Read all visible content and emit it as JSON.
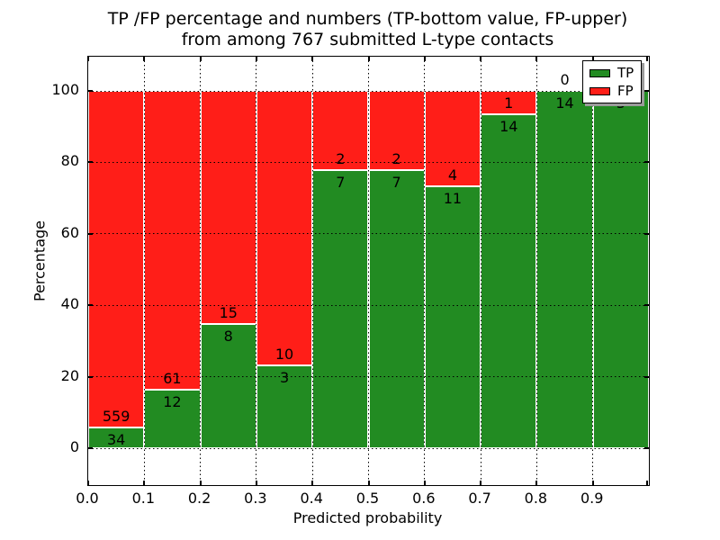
{
  "chart_data": {
    "type": "bar",
    "stacked": true,
    "percent_normalized": true,
    "title_lines": [
      "TP /FP percentage and numbers (TP-bottom value, FP-upper)",
      "from among 767 submitted L-type contacts"
    ],
    "xlabel": "Predicted probability",
    "ylabel": "Percentage",
    "total_submitted": 767,
    "bin_width": 0.1,
    "bin_starts": [
      0.0,
      0.1,
      0.2,
      0.3,
      0.4,
      0.5,
      0.6,
      0.7,
      0.8,
      0.9
    ],
    "x_tick_labels": [
      "0.0",
      "0.1",
      "0.2",
      "0.3",
      "0.4",
      "0.5",
      "0.6",
      "0.7",
      "0.8",
      "0.9"
    ],
    "y_tick_labels": [
      "0",
      "20",
      "40",
      "60",
      "80",
      "100"
    ],
    "y_tick_values": [
      0,
      20,
      40,
      60,
      80,
      100
    ],
    "xlim": [
      0.0,
      1.0
    ],
    "ylim_display": [
      -10.3,
      110.1
    ],
    "grid": "dotted",
    "series": [
      {
        "name": "TP",
        "color": "#228b22",
        "counts": [
          34,
          12,
          8,
          3,
          7,
          7,
          11,
          14,
          14,
          3
        ],
        "percent_of_bin": [
          5.7,
          16.4,
          34.8,
          23.1,
          77.8,
          77.8,
          73.3,
          93.3,
          100.0,
          100.0
        ]
      },
      {
        "name": "FP",
        "color": "#ff1e18",
        "counts": [
          559,
          61,
          15,
          10,
          2,
          2,
          4,
          1,
          0,
          0
        ],
        "percent_of_bin": [
          94.3,
          83.6,
          65.2,
          76.9,
          22.2,
          22.2,
          26.7,
          6.7,
          0.0,
          0.0
        ]
      }
    ],
    "legend": {
      "position": "upper-right",
      "entries": [
        {
          "label": "TP",
          "color": "#228b22"
        },
        {
          "label": "FP",
          "color": "#ff1e18"
        }
      ]
    }
  }
}
